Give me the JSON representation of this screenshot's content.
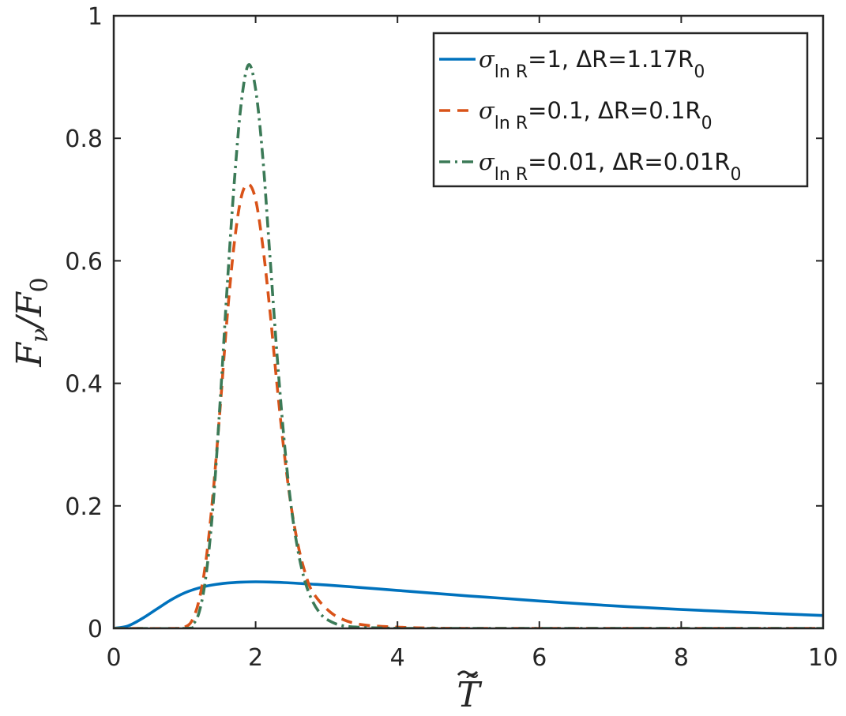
{
  "chart_data": {
    "type": "line",
    "title": "",
    "xlabel": "T̃",
    "ylabel": "F_ν/F_0",
    "xlim": [
      0,
      10
    ],
    "ylim": [
      0,
      1
    ],
    "x_ticks": [
      0,
      2,
      4,
      6,
      8,
      10
    ],
    "y_ticks": [
      0,
      0.2,
      0.4,
      0.6,
      0.8,
      1
    ],
    "x_tick_labels": [
      "0",
      "2",
      "4",
      "6",
      "8",
      "10"
    ],
    "y_tick_labels": [
      "0",
      "0.2",
      "0.4",
      "0.6",
      "0.8",
      "1"
    ],
    "grid": false,
    "legend_position": "top-right",
    "series": [
      {
        "name": "σ_ln R=1, ΔR=1.17R_0",
        "legend": {
          "sym": "σ",
          "sub": "ln R",
          "mid": "=1, ΔR=1.17R",
          "end": "0"
        },
        "color": "#0072BD",
        "style": "solid",
        "x": [
          0,
          0.2,
          0.4,
          0.6,
          0.8,
          1.0,
          1.2,
          1.4,
          1.6,
          1.8,
          2.0,
          2.2,
          2.4,
          2.6,
          2.8,
          3.0,
          3.5,
          4.0,
          4.5,
          5.0,
          5.5,
          6.0,
          6.5,
          7.0,
          7.5,
          8.0,
          8.5,
          9.0,
          9.5,
          10.0
        ],
        "y": [
          0,
          0.004,
          0.016,
          0.031,
          0.046,
          0.058,
          0.066,
          0.071,
          0.074,
          0.0755,
          0.076,
          0.0757,
          0.0748,
          0.0735,
          0.0722,
          0.0708,
          0.0665,
          0.062,
          0.0575,
          0.053,
          0.049,
          0.0447,
          0.0408,
          0.0371,
          0.0339,
          0.0308,
          0.0282,
          0.0256,
          0.0233,
          0.021
        ]
      },
      {
        "name": "σ_ln R=0.1, ΔR=0.1R_0",
        "legend": {
          "sym": "σ",
          "sub": "ln R",
          "mid": "=0.1, ΔR=0.1R",
          "end": "0"
        },
        "color": "#D95319",
        "style": "dashed",
        "x": [
          0,
          0.9,
          1.0,
          1.1,
          1.2,
          1.3,
          1.4,
          1.5,
          1.6,
          1.7,
          1.8,
          1.9,
          2.0,
          2.1,
          2.2,
          2.3,
          2.4,
          2.5,
          2.6,
          2.7,
          2.8,
          3.0,
          3.2,
          3.5,
          4.0,
          4.5,
          5.0,
          10.0
        ],
        "y": [
          0,
          0.0,
          0.002,
          0.012,
          0.045,
          0.11,
          0.22,
          0.36,
          0.51,
          0.63,
          0.705,
          0.725,
          0.7,
          0.625,
          0.52,
          0.4,
          0.29,
          0.2,
          0.135,
          0.09,
          0.06,
          0.032,
          0.016,
          0.006,
          0.002,
          0.0005,
          0.0,
          0.0
        ]
      },
      {
        "name": "σ_ln R=0.01, ΔR=0.01R_0",
        "legend": {
          "sym": "σ",
          "sub": "ln R",
          "mid": "=0.01, ΔR=0.01R",
          "end": "0"
        },
        "color": "#3B7A57",
        "style": "dashdot",
        "x": [
          0,
          1.0,
          1.1,
          1.2,
          1.3,
          1.4,
          1.5,
          1.6,
          1.7,
          1.8,
          1.9,
          2.0,
          2.1,
          2.2,
          2.3,
          2.4,
          2.5,
          2.6,
          2.7,
          2.8,
          2.9,
          3.0,
          3.2,
          3.5,
          4.0,
          4.5,
          10.0
        ],
        "y": [
          0,
          0.0,
          0.005,
          0.025,
          0.085,
          0.2,
          0.37,
          0.56,
          0.73,
          0.86,
          0.92,
          0.88,
          0.77,
          0.61,
          0.45,
          0.31,
          0.2,
          0.125,
          0.075,
          0.045,
          0.026,
          0.015,
          0.005,
          0.0015,
          0.0003,
          0.0,
          0.0
        ]
      }
    ]
  }
}
